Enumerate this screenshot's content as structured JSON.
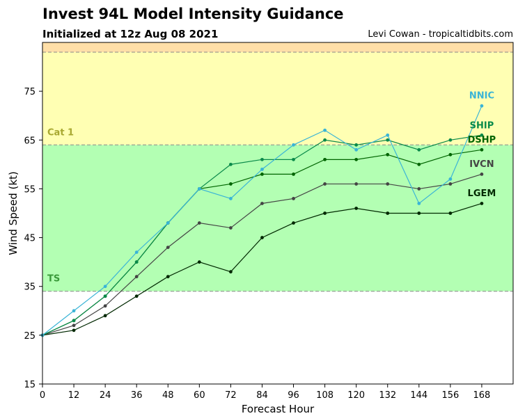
{
  "chart_data": {
    "type": "line",
    "title": "Invest 94L Model Intensity Guidance",
    "subtitle": "Initialized at 12z Aug 08 2021",
    "credit": "Levi Cowan - tropicaltidbits.com",
    "xlabel": "Forecast Hour",
    "ylabel": "Wind Speed (kt)",
    "xlim": [
      0,
      180
    ],
    "ylim": [
      15,
      85
    ],
    "xticks": [
      0,
      12,
      24,
      36,
      48,
      60,
      72,
      84,
      96,
      108,
      120,
      132,
      144,
      156,
      168
    ],
    "yticks": [
      15,
      25,
      35,
      45,
      55,
      65,
      75
    ],
    "grid": false,
    "bands": [
      {
        "from": 15,
        "to": 34,
        "color": "#ffffff",
        "label": ""
      },
      {
        "from": 34,
        "to": 64,
        "color": "#b3ffb3",
        "label": "TS",
        "label_color": "#3a9a3a",
        "label_y": 36
      },
      {
        "from": 64,
        "to": 83,
        "color": "#ffffb3",
        "label": "Cat 1",
        "label_color": "#a8a830",
        "label_y": 66
      },
      {
        "from": 83,
        "to": 85,
        "color": "#ffdfa8",
        "label": ""
      }
    ],
    "x": [
      0,
      12,
      24,
      36,
      48,
      60,
      72,
      84,
      96,
      108,
      120,
      132,
      144,
      156,
      168
    ],
    "series": [
      {
        "name": "NNIC",
        "color": "#3ab4d6",
        "label_y": 73.5,
        "values": [
          25,
          30,
          35,
          42,
          48,
          55,
          53,
          59,
          64,
          67,
          63,
          66,
          52,
          57,
          72
        ]
      },
      {
        "name": "SHIP",
        "color": "#0a8a4a",
        "label_y": 67.4,
        "values": [
          25,
          28,
          33,
          40,
          48,
          55,
          60,
          61,
          61,
          65,
          64,
          65,
          63,
          65,
          66
        ]
      },
      {
        "name": "DSHP",
        "color": "#006400",
        "label_y": 64.5,
        "values": [
          25,
          28,
          33,
          40,
          48,
          55,
          56,
          58,
          58,
          61,
          61,
          62,
          60,
          62,
          63
        ]
      },
      {
        "name": "IVCN",
        "color": "#444444",
        "label_y": 59.5,
        "values": [
          25,
          27,
          31,
          37,
          43,
          48,
          47,
          52,
          53,
          56,
          56,
          56,
          55,
          56,
          58
        ]
      },
      {
        "name": "LGEM",
        "color": "#002800",
        "label_y": 53.5,
        "values": [
          25,
          26,
          29,
          33,
          37,
          40,
          38,
          45,
          48,
          50,
          51,
          50,
          50,
          50,
          52
        ]
      }
    ]
  }
}
